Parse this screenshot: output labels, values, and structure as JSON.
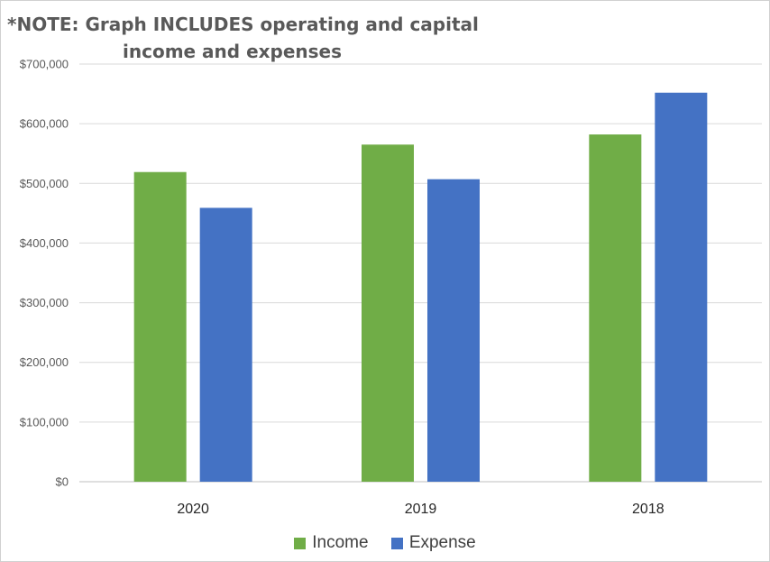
{
  "chart_data": {
    "type": "bar",
    "title": "*NOTE: Graph INCLUDES operating and capital income and expenses",
    "title_lines": [
      "*NOTE: Graph INCLUDES operating and capital",
      "income and expenses"
    ],
    "categories": [
      "2020",
      "2019",
      "2018"
    ],
    "series": [
      {
        "name": "Income",
        "color": "#70ad47",
        "values": [
          519000,
          565000,
          582000
        ]
      },
      {
        "name": "Expense",
        "color": "#4472c4",
        "values": [
          459000,
          507000,
          652000
        ]
      }
    ],
    "ylim": [
      0,
      700000
    ],
    "yticks": [
      0,
      100000,
      200000,
      300000,
      400000,
      500000,
      600000,
      700000
    ],
    "ytick_labels": [
      "$0",
      "$100,000",
      "$200,000",
      "$300,000",
      "$400,000",
      "$500,000",
      "$600,000",
      "$700,000"
    ],
    "xlabel": "",
    "ylabel": "",
    "grid": true,
    "legend_position": "bottom"
  }
}
